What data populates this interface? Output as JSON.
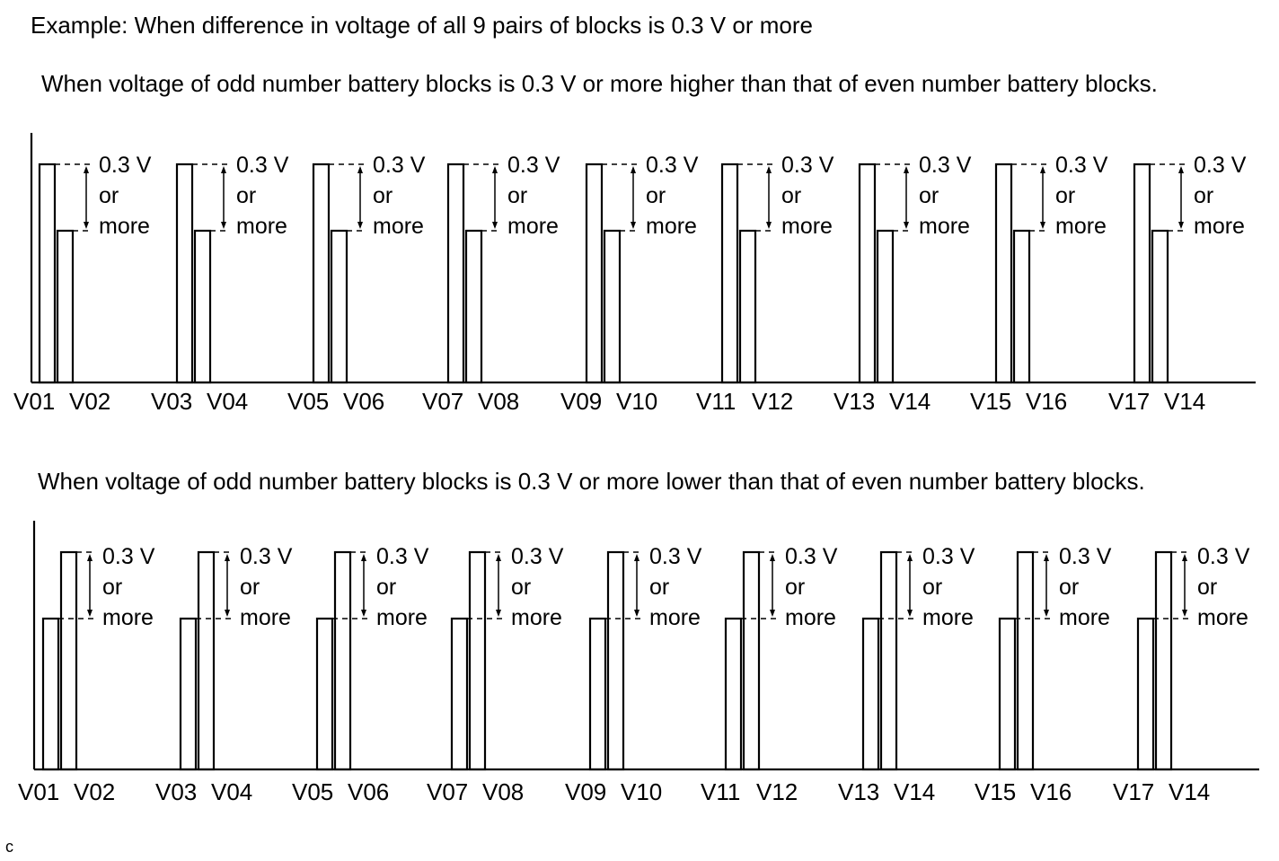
{
  "title": "Example: When difference in voltage of all 9 pairs of blocks is 0.3 V or more",
  "panels": [
    {
      "caption": "When voltage of odd number battery blocks is 0.3 V or more higher than that of even number battery blocks.",
      "odd_block": "higher",
      "pairs": [
        {
          "odd": "V01",
          "even": "V02"
        },
        {
          "odd": "V03",
          "even": "V04"
        },
        {
          "odd": "V05",
          "even": "V06"
        },
        {
          "odd": "V07",
          "even": "V08"
        },
        {
          "odd": "V09",
          "even": "V10"
        },
        {
          "odd": "V11",
          "even": "V12"
        },
        {
          "odd": "V13",
          "even": "V14"
        },
        {
          "odd": "V15",
          "even": "V16"
        },
        {
          "odd": "V17",
          "even": "V14"
        }
      ]
    },
    {
      "caption": "When voltage of odd number battery blocks is 0.3 V or more lower than that of even number battery blocks.",
      "odd_block": "lower",
      "pairs": [
        {
          "odd": "V01",
          "even": "V02"
        },
        {
          "odd": "V03",
          "even": "V04"
        },
        {
          "odd": "V05",
          "even": "V06"
        },
        {
          "odd": "V07",
          "even": "V08"
        },
        {
          "odd": "V09",
          "even": "V10"
        },
        {
          "odd": "V11",
          "even": "V12"
        },
        {
          "odd": "V13",
          "even": "V14"
        },
        {
          "odd": "V15",
          "even": "V16"
        },
        {
          "odd": "V17",
          "even": "V14"
        }
      ]
    }
  ],
  "difference_label": [
    "0.3 V",
    "or",
    "more"
  ],
  "corner_mark": "c"
}
